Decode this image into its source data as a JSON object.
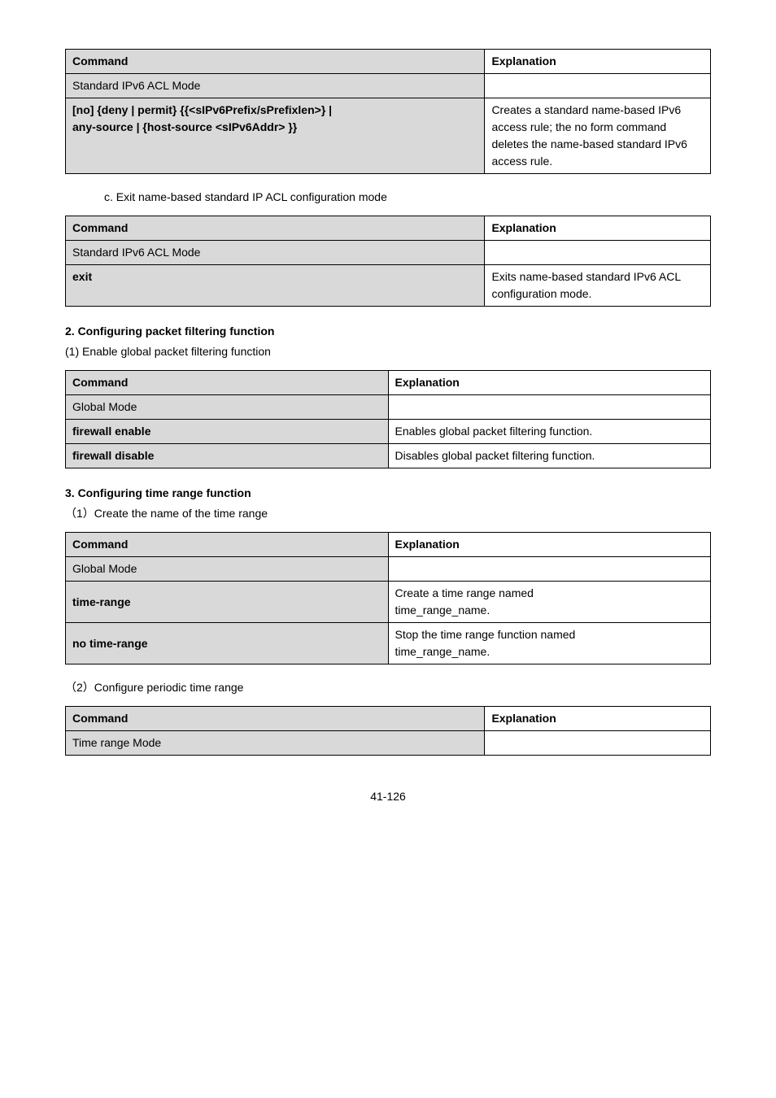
{
  "table1": {
    "header_left": "Command",
    "header_right": "Explanation",
    "row1_left": "Standard IPv6 ACL Mode",
    "row1_right": "",
    "row2_left_line1": "[no] {deny | permit} {{<sIPv6Prefix/sPrefixlen>} |",
    "row2_left_line2": "any-source | {host-source <sIPv6Addr> }}",
    "row2_right": "Creates a standard name-based IPv6 access rule; the no form command deletes the name-based standard IPv6 access rule."
  },
  "section_c": "c. Exit name-based standard IP ACL configuration mode",
  "table2": {
    "header_left": "Command",
    "header_right": "Explanation",
    "row1_left": "Standard IPv6 ACL Mode",
    "row1_right": "",
    "row2_left": "exit",
    "row2_right": "Exits name-based standard IPv6 ACL configuration mode."
  },
  "heading2": "2. Configuring packet filtering function",
  "sub2_1": "(1) Enable global packet filtering function",
  "table3": {
    "header_left": "Command",
    "header_right": "Explanation",
    "row1_left": "Global Mode",
    "row1_right": "",
    "row2_left": "firewall enable",
    "row2_right": "Enables global packet filtering function.",
    "row3_left": "firewall disable",
    "row3_right": "Disables global packet filtering function."
  },
  "heading3": "3. Configuring time range function",
  "sub3_1": "（1）Create the name of the time range",
  "table4": {
    "header_left": "Command",
    "header_right": "Explanation",
    "row1_left": "Global Mode",
    "row1_right": "",
    "row2_left": "time-range",
    "row2_right_line1": "Create a time range named",
    "row2_right_line2": "time_range_name.",
    "row3_left": "no time-range",
    "row3_right_line1": "Stop the time range function named",
    "row3_right_line2": "time_range_name."
  },
  "sub3_2": "（2）Configure periodic time range",
  "table5": {
    "header_left": "Command",
    "header_right": "Explanation",
    "row1_left": "Time range Mode",
    "row1_right": ""
  },
  "footer": "41-126"
}
